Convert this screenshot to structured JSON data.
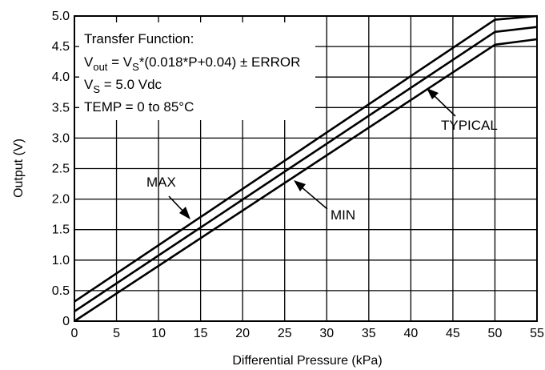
{
  "chart_data": {
    "type": "line",
    "xlabel": "Differential Pressure (kPa)",
    "ylabel": "Output (V)",
    "xlim": [
      0,
      55
    ],
    "ylim": [
      0,
      5.0
    ],
    "x_ticks": [
      "0",
      "5",
      "10",
      "15",
      "20",
      "25",
      "30",
      "35",
      "40",
      "45",
      "50",
      "55"
    ],
    "y_ticks": [
      "0",
      "0.5",
      "1.0",
      "1.5",
      "2.0",
      "2.5",
      "3.0",
      "3.5",
      "4.0",
      "4.5",
      "5.0"
    ],
    "grid": true,
    "series": [
      {
        "name": "MAX",
        "x": [
          0,
          50,
          55
        ],
        "y": [
          0.32,
          4.94,
          5.0
        ]
      },
      {
        "name": "TYPICAL",
        "x": [
          0,
          50,
          55
        ],
        "y": [
          0.16,
          4.74,
          4.82
        ]
      },
      {
        "name": "MIN",
        "x": [
          0,
          50,
          55
        ],
        "y": [
          0.0,
          4.53,
          4.62
        ]
      }
    ],
    "annotations": {
      "function_title": "Transfer Function:",
      "function_v": "V",
      "function_out_sub": "out",
      "function_eq": " = V",
      "function_s_sub": "S",
      "function_rest": "*(0.018*P+0.04) ± ERROR",
      "supply_v": "V",
      "supply_sub": "S",
      "supply_rest": " = 5.0 Vdc",
      "temp": "TEMP = 0 to 85°C"
    }
  }
}
